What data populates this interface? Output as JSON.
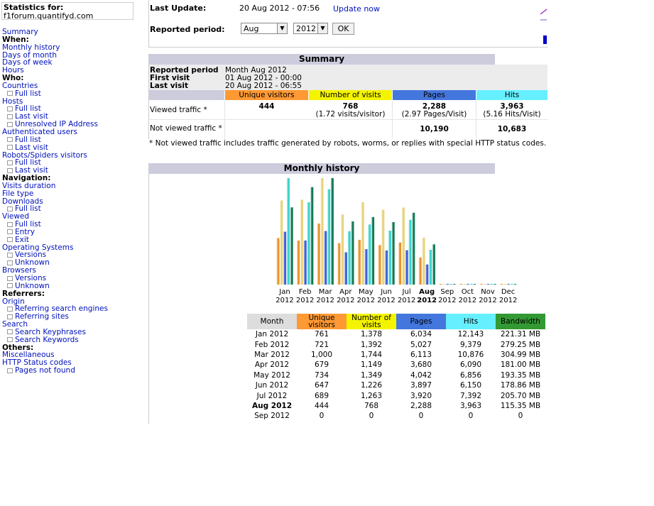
{
  "stats_for": {
    "label": "Statistics for:",
    "site": "f1forum.quantifyd.com"
  },
  "menu": [
    {
      "t": "link",
      "label": "Summary"
    },
    {
      "t": "head",
      "label": "When:"
    },
    {
      "t": "link",
      "label": "Monthly history"
    },
    {
      "t": "link",
      "label": "Days of month"
    },
    {
      "t": "link",
      "label": "Days of week"
    },
    {
      "t": "link",
      "label": "Hours"
    },
    {
      "t": "head",
      "label": "Who:"
    },
    {
      "t": "link",
      "label": "Countries"
    },
    {
      "t": "sub",
      "label": "Full list"
    },
    {
      "t": "link",
      "label": "Hosts"
    },
    {
      "t": "sub",
      "label": "Full list"
    },
    {
      "t": "sub",
      "label": "Last visit"
    },
    {
      "t": "sub",
      "label": "Unresolved IP Address"
    },
    {
      "t": "link",
      "label": "Authenticated users"
    },
    {
      "t": "sub",
      "label": "Full list"
    },
    {
      "t": "sub",
      "label": "Last visit"
    },
    {
      "t": "link",
      "label": "Robots/Spiders visitors"
    },
    {
      "t": "sub",
      "label": "Full list"
    },
    {
      "t": "sub",
      "label": "Last visit"
    },
    {
      "t": "head",
      "label": "Navigation:"
    },
    {
      "t": "link",
      "label": "Visits duration"
    },
    {
      "t": "link",
      "label": "File type"
    },
    {
      "t": "link",
      "label": "Downloads"
    },
    {
      "t": "sub",
      "label": "Full list"
    },
    {
      "t": "link",
      "label": "Viewed"
    },
    {
      "t": "sub",
      "label": "Full list"
    },
    {
      "t": "sub",
      "label": "Entry"
    },
    {
      "t": "sub",
      "label": "Exit"
    },
    {
      "t": "link",
      "label": "Operating Systems"
    },
    {
      "t": "sub",
      "label": "Versions"
    },
    {
      "t": "sub",
      "label": "Unknown"
    },
    {
      "t": "link",
      "label": "Browsers"
    },
    {
      "t": "sub",
      "label": "Versions"
    },
    {
      "t": "sub",
      "label": "Unknown"
    },
    {
      "t": "head",
      "label": "Referrers:"
    },
    {
      "t": "link",
      "label": "Origin"
    },
    {
      "t": "sub",
      "label": "Referring search engines"
    },
    {
      "t": "sub",
      "label": "Referring sites"
    },
    {
      "t": "link",
      "label": "Search"
    },
    {
      "t": "sub",
      "label": "Search Keyphrases"
    },
    {
      "t": "sub",
      "label": "Search Keywords"
    },
    {
      "t": "head",
      "label": "Others:"
    },
    {
      "t": "link",
      "label": "Miscellaneous"
    },
    {
      "t": "link",
      "label": "HTTP Status codes"
    },
    {
      "t": "sub",
      "label": "Pages not found"
    }
  ],
  "top": {
    "last_update_label": "Last Update:",
    "last_update_value": "20 Aug 2012 - 07:56",
    "update_now": "Update now",
    "period_label": "Reported period:",
    "month": "Aug",
    "year": "2012",
    "ok": "OK"
  },
  "summary": {
    "title": "Summary",
    "reported_period_label": "Reported period",
    "reported_period_value": "Month Aug 2012",
    "first_visit_label": "First visit",
    "first_visit_value": "01 Aug 2012 - 00:00",
    "last_visit_label": "Last visit",
    "last_visit_value": "20 Aug 2012 - 06:55",
    "headers": [
      "Unique visitors",
      "Number of visits",
      "Pages",
      "Hits"
    ],
    "viewed_label": "Viewed traffic *",
    "viewed": {
      "unique": "444",
      "visits": "768",
      "visits_sub": "(1.72 visits/visitor)",
      "pages": "2,288",
      "pages_sub": "(2.97 Pages/Visit)",
      "hits": "3,963",
      "hits_sub": "(5.16 Hits/Visit)"
    },
    "not_viewed_label": "Not viewed traffic *",
    "not_viewed": {
      "pages": "10,190",
      "hits": "10,683"
    },
    "footnote": "* Not viewed traffic includes traffic generated by robots, worms, or replies with special HTTP status codes."
  },
  "monthly": {
    "title": "Monthly history",
    "headers": [
      "Month",
      "Unique visitors",
      "Number of visits",
      "Pages",
      "Hits",
      "Bandwidth"
    ],
    "rows": [
      [
        "Jan 2012",
        "761",
        "1,378",
        "6,034",
        "12,143",
        "221.31 MB"
      ],
      [
        "Feb 2012",
        "721",
        "1,392",
        "5,027",
        "9,379",
        "279.25 MB"
      ],
      [
        "Mar 2012",
        "1,000",
        "1,744",
        "6,113",
        "10,876",
        "304.99 MB"
      ],
      [
        "Apr 2012",
        "679",
        "1,149",
        "3,680",
        "6,090",
        "181.00 MB"
      ],
      [
        "May 2012",
        "734",
        "1,349",
        "4,042",
        "6,856",
        "193.35 MB"
      ],
      [
        "Jun 2012",
        "647",
        "1,226",
        "3,897",
        "6,150",
        "178.86 MB"
      ],
      [
        "Jul 2012",
        "689",
        "1,263",
        "3,920",
        "7,392",
        "205.70 MB"
      ],
      [
        "Aug 2012",
        "444",
        "768",
        "2,288",
        "3,963",
        "115.35 MB"
      ],
      [
        "Sep 2012",
        "0",
        "0",
        "0",
        "0",
        "0"
      ]
    ]
  },
  "colors": {
    "unique": "#ff9933",
    "visits": "#f4f400",
    "pages": "#4477dd",
    "hits": "#66f0ff",
    "bandwidth": "#339933",
    "section": "#ccccdd",
    "link": "#0011bb"
  },
  "chart_data": {
    "type": "bar",
    "categories": [
      "Jan",
      "Feb",
      "Mar",
      "Apr",
      "May",
      "Jun",
      "Jul",
      "Aug",
      "Sep",
      "Oct",
      "Nov",
      "Dec"
    ],
    "sublabels": [
      "2012",
      "2012",
      "2012",
      "2012",
      "2012",
      "2012",
      "2012",
      "2012",
      "2012",
      "2012",
      "2012",
      "2012"
    ],
    "series": [
      {
        "name": "Unique visitors",
        "values": [
          761,
          721,
          1000,
          679,
          734,
          647,
          689,
          444,
          0,
          0,
          0,
          0
        ]
      },
      {
        "name": "Number of visits",
        "values": [
          1378,
          1392,
          1744,
          1149,
          1349,
          1226,
          1263,
          768,
          0,
          0,
          0,
          0
        ]
      },
      {
        "name": "Pages",
        "values": [
          6034,
          5027,
          6113,
          3680,
          4042,
          3897,
          3920,
          2288,
          0,
          0,
          0,
          0
        ]
      },
      {
        "name": "Hits",
        "values": [
          12143,
          9379,
          10876,
          6090,
          6856,
          6150,
          7392,
          3963,
          0,
          0,
          0,
          0
        ]
      },
      {
        "name": "Bandwidth",
        "values": [
          221.31,
          279.25,
          304.99,
          181.0,
          193.35,
          178.86,
          205.7,
          115.35,
          0,
          0,
          0,
          0
        ]
      }
    ],
    "highlight": "Aug"
  }
}
